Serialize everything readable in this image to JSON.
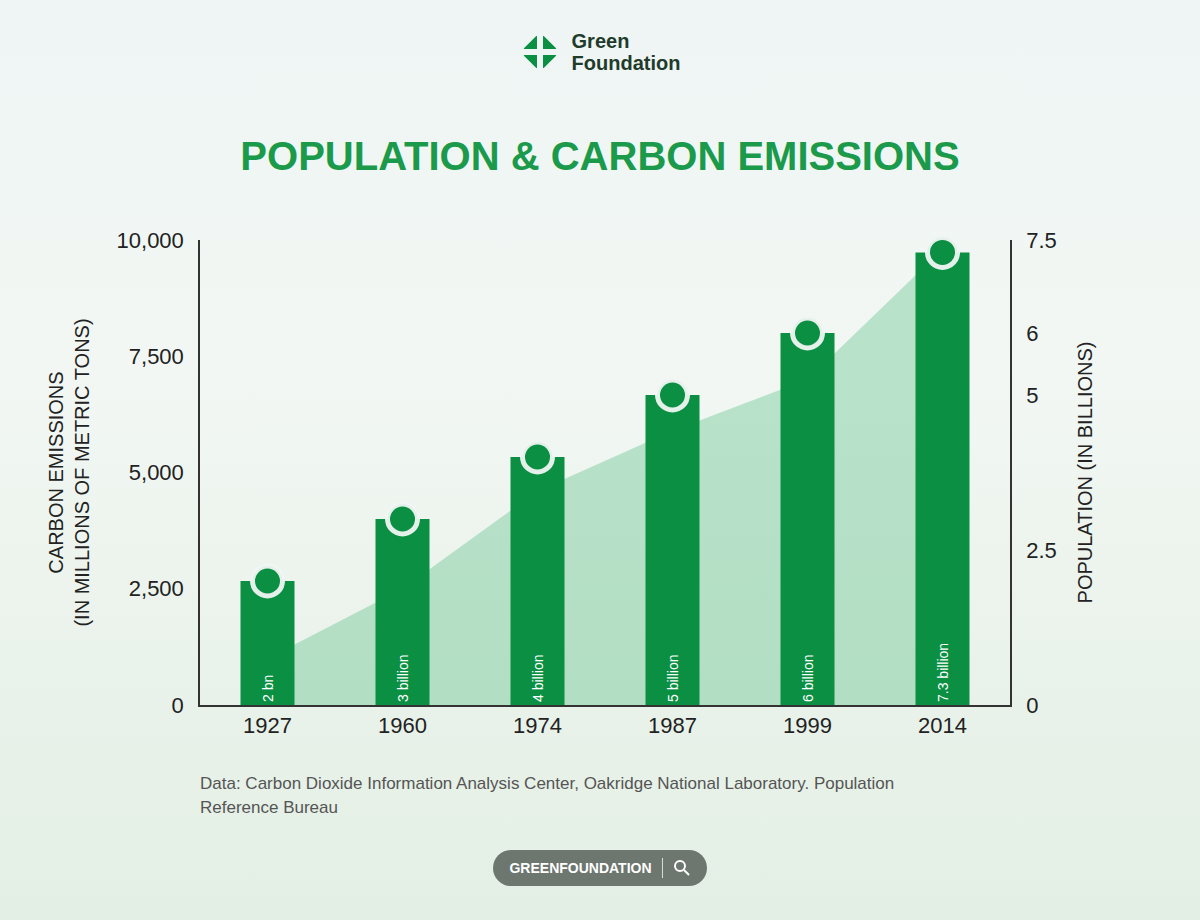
{
  "brand": "Green Foundation",
  "footer": "GREENFOUNDATION",
  "chart_data": {
    "type": "bar",
    "title": "POPULATION & CARBON EMISSIONS",
    "categories": [
      "1927",
      "1960",
      "1974",
      "1987",
      "1999",
      "2014"
    ],
    "series": [
      {
        "type": "area",
        "color": "#4cbb7f",
        "axis": "y",
        "values": [
          1000,
          2500,
          4600,
          5900,
          7000,
          9800
        ]
      },
      {
        "type": "bar",
        "color": "#0a8f43",
        "axis": "y2",
        "marker": "circle",
        "values": [
          2,
          3,
          4,
          5,
          6,
          7.3
        ],
        "value_labels": [
          "2 bn",
          "3 billion",
          "4 billion",
          "5 billion",
          "6 billion",
          "7.3 billion"
        ]
      }
    ],
    "y_label": "CARBON EMISSIONS (IN MILLIONS OF METRIC TONS)",
    "y2_label": "POPULATION (IN BILLIONS)",
    "ylim": [
      0,
      10000
    ],
    "yticks": [
      0,
      {
        "value": 2500,
        "label": "2,500"
      },
      {
        "value": 5000,
        "label": "5,000"
      },
      {
        "value": 7500,
        "label": "7,500"
      },
      {
        "value": 10000,
        "label": "10,000"
      }
    ],
    "y2lim": [
      0,
      7.5
    ],
    "y2ticks": [
      0,
      2.5,
      5,
      6,
      7.5
    ],
    "grid": false,
    "data_labels": true,
    "source": "Data: Carbon Dioxide Information Analysis Center, Oakridge National Laboratory. Population Reference Bureau"
  }
}
